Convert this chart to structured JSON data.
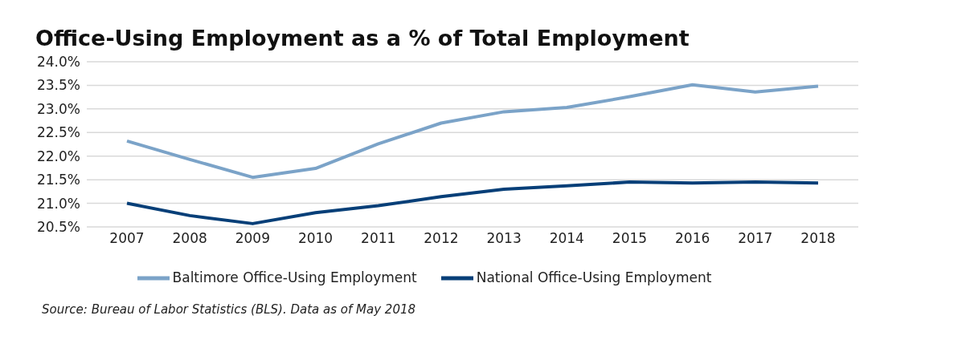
{
  "chart_data": {
    "type": "line",
    "title": "Office-Using Employment as a % of Total Employment",
    "categories": [
      "2007",
      "2008",
      "2009",
      "2010",
      "2011",
      "2012",
      "2013",
      "2014",
      "2015",
      "2016",
      "2017",
      "2018"
    ],
    "series": [
      {
        "name": "Baltimore Office-Using Employment",
        "color": "#7ba3c8",
        "values": [
          22.32,
          21.93,
          21.55,
          21.74,
          22.26,
          22.7,
          22.94,
          23.03,
          23.26,
          23.51,
          23.36,
          23.48
        ]
      },
      {
        "name": "National Office-Using Employment",
        "color": "#073f78",
        "values": [
          21.0,
          20.74,
          20.57,
          20.8,
          20.95,
          21.14,
          21.3,
          21.37,
          21.45,
          21.43,
          21.45,
          21.43
        ]
      }
    ],
    "ylim": [
      20.5,
      24.0
    ],
    "yticks": [
      {
        "value": 20.5,
        "label": "20.5%"
      },
      {
        "value": 21.0,
        "label": "21.0%"
      },
      {
        "value": 21.5,
        "label": "21.5%"
      },
      {
        "value": 22.0,
        "label": "22.0%"
      },
      {
        "value": 22.5,
        "label": "22.5%"
      },
      {
        "value": 23.0,
        "label": "23.0%"
      },
      {
        "value": 23.5,
        "label": "23.5%"
      },
      {
        "value": 24.0,
        "label": "24.0%"
      }
    ],
    "grid": "y",
    "legend": "bottom",
    "marker": "none",
    "line_style": "solid",
    "annotations": [
      "Source: Bureau of Labor Statistics (BLS). Data as of May 2018"
    ]
  }
}
